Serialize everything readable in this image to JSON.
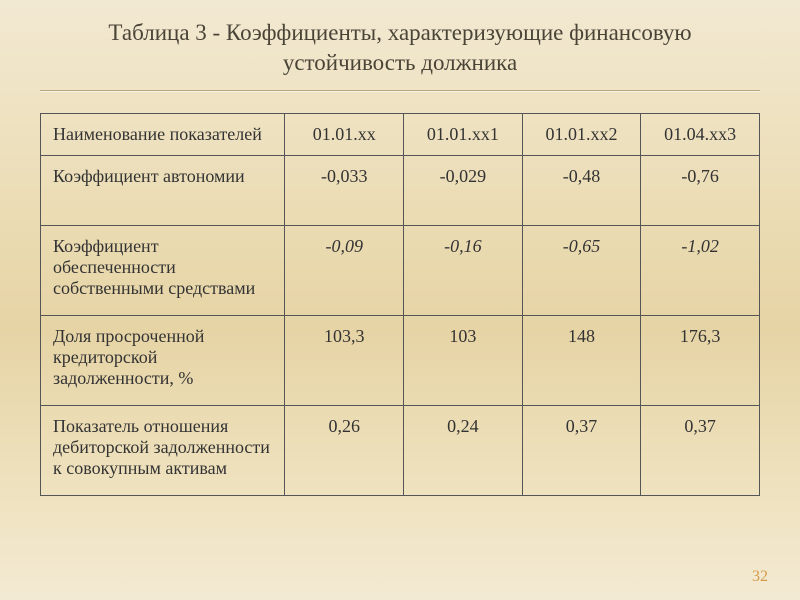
{
  "title": "Таблица 3 - Коэффициенты, характеризующие финансовую устойчивость должника",
  "table": {
    "columns": [
      "Наименование показателей",
      "01.01.хх",
      "01.01.хх1",
      "01.01.хх2",
      "01.04.хх3"
    ],
    "rows": [
      {
        "label": "Коэффициент автономии",
        "values": [
          "-0,033",
          "-0,029",
          "-0,48",
          "-0,76"
        ],
        "italic": false,
        "height": "med"
      },
      {
        "label": "Коэффициент обеспеченности собственными средствами",
        "values": [
          "-0,09",
          "-0,16",
          "-0,65",
          "-1,02"
        ],
        "italic": true,
        "height": "tall"
      },
      {
        "label": "Доля просроченной кредиторской задолженности, %",
        "values": [
          "103,3",
          "103",
          "148",
          "176,3"
        ],
        "italic": false,
        "height": "tall"
      },
      {
        "label": "Показатель отношения дебиторской задолженности  к совокупным активам",
        "values": [
          "0,26",
          "0,24",
          "0,37",
          "0,37"
        ],
        "italic": false,
        "height": "tall"
      }
    ]
  },
  "page_number": "32",
  "colors": {
    "text": "#3a3a3a",
    "title": "#4a4437",
    "border": "#555555",
    "rule": "#b8a776",
    "pagenum": "#d49b4a"
  }
}
